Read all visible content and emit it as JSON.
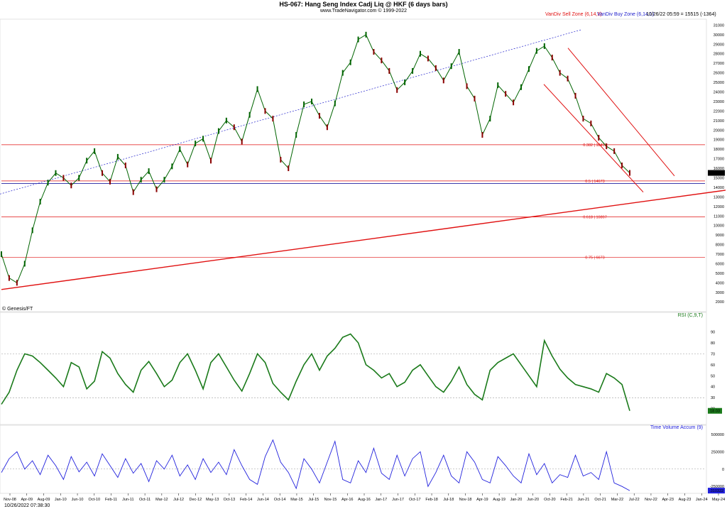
{
  "header": {
    "title": "HS-067:  Hang Seng Index Cadj Liq @ HKF  (6 days bars)",
    "subtitle": "www.TradeNavigator.com © 1999-2022",
    "sell_zone": "VanDiv Sell Zone (6,14,1)",
    "buy_zone": "VanDiv Buy Zone (6,14,1)",
    "last_info": "10/26/22 05:59 = 15515 (-1364)",
    "watermark": "© Genesis/FT",
    "timestamp": "10/26/2022 07:38:30"
  },
  "colors": {
    "price_up": "#006400",
    "price_down": "#8b0000",
    "rsi": "#1a7a1a",
    "tva": "#2222dd",
    "fib": "#e01010",
    "trend": "#e01010",
    "dotted_channel": "#2222cc",
    "support_blue": "#2020a0"
  },
  "x_axis": {
    "labels": [
      "Nov-08",
      "Apr-09",
      "Aug-09",
      "Jan-10",
      "Jun-10",
      "Oct-10",
      "Feb-11",
      "Jun-11",
      "Oct-11",
      "Mar-12",
      "Jul-12",
      "Dec-12",
      "May-13",
      "Oct-13",
      "Feb-14",
      "Jun-14",
      "Oct-14",
      "Mar-15",
      "Jul-15",
      "Nov-15",
      "Apr-16",
      "Aug-16",
      "Jan-17",
      "Jun-17",
      "Oct-17",
      "Feb-18",
      "Jul-18",
      "Nov-18",
      "Apr-19",
      "Aug-19",
      "Jan-20",
      "Jun-20",
      "Oct-20",
      "Feb-21",
      "Jun-21",
      "Oct-21",
      "Mar-22",
      "Jul-22",
      "Nov-22",
      "Apr-23",
      "Aug-23",
      "Jan-24",
      "May-24"
    ]
  },
  "chart_data": [
    {
      "type": "line",
      "name_panel": "price",
      "ylim": [
        1200,
        31400
      ],
      "yticks": [
        2000,
        3000,
        4000,
        5000,
        6000,
        7000,
        8000,
        9000,
        10000,
        11000,
        12000,
        13000,
        14000,
        15000,
        16000,
        17000,
        18000,
        19000,
        20000,
        21000,
        22000,
        23000,
        24000,
        25000,
        26000,
        27000,
        28000,
        29000,
        30000,
        31000
      ],
      "last_value": "15515",
      "series": [
        {
          "values": [
            7000,
            4500,
            4000,
            6000,
            9500,
            12500,
            14500,
            15500,
            15000,
            14200,
            15000,
            16800,
            17800,
            15500,
            14600,
            17200,
            16300,
            13500,
            14800,
            15700,
            13800,
            14800,
            16200,
            18000,
            16400,
            18600,
            19100,
            16800,
            19900,
            21000,
            20300,
            18800,
            21600,
            24300,
            22000,
            21200,
            16900,
            16000,
            19500,
            22700,
            23000,
            21500,
            20300,
            22800,
            26000,
            27100,
            29500,
            30000,
            28200,
            27300,
            26200,
            24200,
            25000,
            26200,
            28000,
            27500,
            26500,
            25200,
            26700,
            28200,
            24600,
            23300,
            19500,
            21200,
            24700,
            23800,
            22900,
            24500,
            26400,
            28300,
            28800,
            27600,
            26000,
            25400,
            23600,
            21200,
            20700,
            19200,
            18300,
            17800,
            16300,
            15515
          ]
        }
      ],
      "fib_levels": [
        {
          "label": "0.382 | 18469",
          "value": 18469
        },
        {
          "label": "0.5 | 14673",
          "value": 14673
        },
        {
          "label": "0.618 | 10897",
          "value": 10897
        },
        {
          "label": "0.75 | 6673",
          "value": 6673
        }
      ],
      "support_level": 14400
    },
    {
      "type": "line",
      "name": "RSI (C,9,T)",
      "ylim": [
        12,
        100
      ],
      "yticks": [
        20,
        30,
        40,
        50,
        60,
        70,
        80,
        90
      ],
      "reference_lines": [
        30,
        70
      ],
      "last_value": "18.03",
      "series": [
        {
          "values": [
            24,
            35,
            55,
            70,
            68,
            62,
            55,
            48,
            40,
            62,
            58,
            38,
            45,
            72,
            66,
            52,
            42,
            35,
            55,
            63,
            52,
            40,
            46,
            62,
            70,
            55,
            38,
            62,
            70,
            58,
            46,
            36,
            52,
            70,
            62,
            43,
            35,
            28,
            45,
            60,
            70,
            55,
            68,
            75,
            85,
            88,
            80,
            60,
            55,
            48,
            52,
            40,
            44,
            55,
            60,
            50,
            40,
            35,
            45,
            58,
            42,
            33,
            28,
            55,
            62,
            66,
            70,
            60,
            50,
            40,
            82,
            68,
            56,
            48,
            42,
            40,
            38,
            35,
            52,
            48,
            42,
            18
          ]
        }
      ]
    },
    {
      "type": "line",
      "name": "Time Volume Accum (9)",
      "ylim": [
        -340000,
        560000
      ],
      "yticks": [
        -250000,
        0,
        250000,
        500000
      ],
      "tick_labels": [
        "-250000",
        "0",
        "250000",
        "500000"
      ],
      "reference_lines": [
        0
      ],
      "last_value": "-310322",
      "series": [
        {
          "values": [
            -50000,
            150000,
            250000,
            0,
            120000,
            -80000,
            200000,
            50000,
            -150000,
            180000,
            -40000,
            100000,
            -100000,
            220000,
            50000,
            -120000,
            150000,
            -60000,
            80000,
            -180000,
            120000,
            0,
            200000,
            -100000,
            60000,
            -150000,
            150000,
            -50000,
            100000,
            -80000,
            280000,
            50000,
            -150000,
            -220000,
            180000,
            420000,
            100000,
            -50000,
            -280000,
            150000,
            0,
            -200000,
            100000,
            400000,
            -150000,
            -200000,
            120000,
            -50000,
            300000,
            -60000,
            -150000,
            200000,
            -100000,
            150000,
            250000,
            -250000,
            -50000,
            200000,
            -100000,
            -200000,
            250000,
            100000,
            -150000,
            -200000,
            180000,
            50000,
            -100000,
            -200000,
            220000,
            -80000,
            80000,
            -200000,
            -80000,
            -120000,
            200000,
            -100000,
            -50000,
            -150000,
            250000,
            -200000,
            -250000,
            -310322
          ]
        }
      ]
    }
  ]
}
